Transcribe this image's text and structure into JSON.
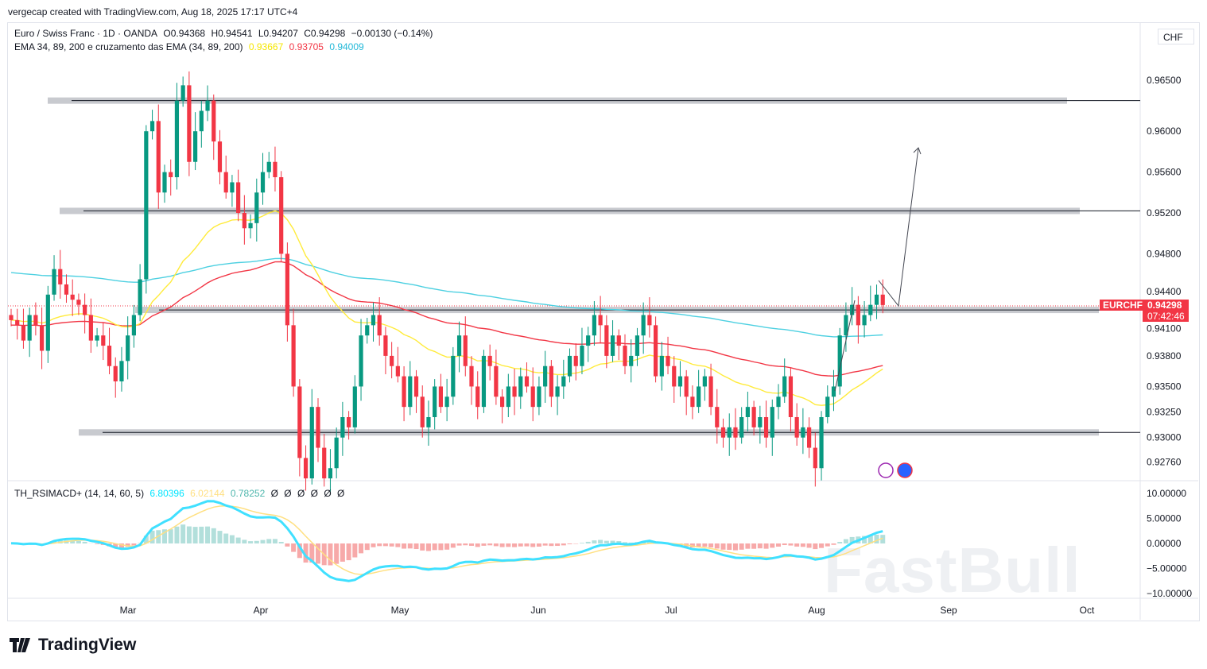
{
  "credit": "vergecap created with TradingView.com, Aug 18, 2025 17:17 UTC+4",
  "symbol": {
    "name": "Euro / Swiss Franc · 1D · OANDA",
    "open": "O0.94368",
    "high": "H0.94541",
    "low": "L0.94207",
    "close": "C0.94298",
    "change": "−0.00130 (−0.14%)"
  },
  "ema": {
    "label": "EMA 34, 89, 200 e cruzamento das EMA (34, 89, 200)",
    "v34": "0.93667",
    "v89": "0.93705",
    "v200": "0.94009"
  },
  "indicator": {
    "label": "TH_RSIMACD+ (14, 14, 60, 5)",
    "v1": "6.80396",
    "v2": "6.02144",
    "v3": "0.78252",
    "empties": [
      "Ø",
      "Ø",
      "Ø",
      "Ø",
      "Ø",
      "Ø"
    ]
  },
  "currency": "CHF",
  "price_tag": {
    "symbol": "EURCHF",
    "price": "0.94298",
    "countdown": "07:42:46"
  },
  "watermark": "FastBull",
  "brand": "TradingView",
  "colors": {
    "up": "#089981",
    "down": "#f23645",
    "ema34": "#ffeb3b",
    "ema89": "#f23645",
    "ema200": "#4dd0e1"
  },
  "chart_data": {
    "type": "candlestick",
    "title": "EURCHF 1D",
    "x_ticks": [
      "Mar",
      "Apr",
      "May",
      "Jun",
      "Jul",
      "Aug",
      "Sep",
      "Oct"
    ],
    "y_ticks": [
      "0.96500",
      "0.96000",
      "0.95600",
      "0.95200",
      "0.94800",
      "0.94400",
      "0.94100",
      "0.93800",
      "0.93500",
      "0.93250",
      "0.93000",
      "0.92760"
    ],
    "ylim": [
      0.9255,
      0.9675
    ],
    "zones": [
      0.963,
      0.9522,
      0.9425,
      0.9305
    ],
    "closes": [
      0.9415,
      0.941,
      0.9395,
      0.942,
      0.941,
      0.9385,
      0.944,
      0.9465,
      0.945,
      0.944,
      0.9435,
      0.943,
      0.942,
      0.9395,
      0.94,
      0.939,
      0.937,
      0.9355,
      0.9375,
      0.94,
      0.942,
      0.9455,
      0.96,
      0.961,
      0.954,
      0.956,
      0.9555,
      0.963,
      0.9645,
      0.957,
      0.96,
      0.962,
      0.963,
      0.959,
      0.956,
      0.954,
      0.955,
      0.952,
      0.9505,
      0.951,
      0.954,
      0.956,
      0.957,
      0.9555,
      0.948,
      0.941,
      0.935,
      0.928,
      0.926,
      0.933,
      0.929,
      0.926,
      0.927,
      0.93,
      0.932,
      0.931,
      0.935,
      0.94,
      0.941,
      0.942,
      0.94,
      0.938,
      0.937,
      0.936,
      0.933,
      0.936,
      0.934,
      0.931,
      0.932,
      0.935,
      0.933,
      0.934,
      0.938,
      0.94,
      0.937,
      0.935,
      0.933,
      0.938,
      0.937,
      0.934,
      0.933,
      0.935,
      0.934,
      0.936,
      0.935,
      0.933,
      0.935,
      0.937,
      0.934,
      0.935,
      0.936,
      0.938,
      0.937,
      0.939,
      0.94,
      0.942,
      0.941,
      0.938,
      0.94,
      0.939,
      0.937,
      0.938,
      0.94,
      0.942,
      0.941,
      0.936,
      0.938,
      0.937,
      0.935,
      0.936,
      0.934,
      0.933,
      0.935,
      0.936,
      0.933,
      0.931,
      0.93,
      0.931,
      0.93,
      0.932,
      0.933,
      0.931,
      0.932,
      0.93,
      0.933,
      0.934,
      0.936,
      0.932,
      0.93,
      0.931,
      0.929,
      0.927,
      0.932,
      0.934,
      0.935,
      0.94,
      0.942,
      0.943,
      0.941,
      0.942,
      0.943,
      0.944,
      0.94298
    ],
    "indicator_ticks": [
      "10.00000",
      "5.00000",
      "0.00000",
      "−5.00000",
      "−10.00000"
    ],
    "indicator_ylim": [
      -10,
      10
    ]
  }
}
